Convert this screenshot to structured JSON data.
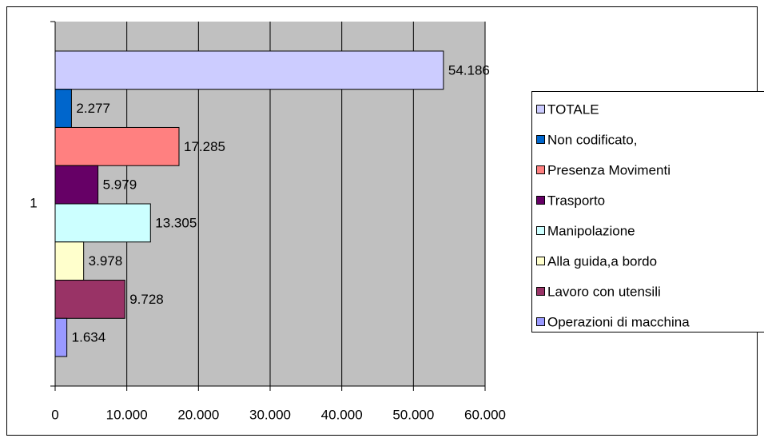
{
  "chart_data": {
    "type": "hbar",
    "categories": [
      "1"
    ],
    "series": [
      {
        "name": "TOTALE",
        "color": "#ccccff",
        "values": [
          54186
        ],
        "value_labels": [
          "54.186"
        ]
      },
      {
        "name": "Non codificato,",
        "color": "#0066cc",
        "values": [
          2277
        ],
        "value_labels": [
          "2.277"
        ]
      },
      {
        "name": "Presenza Movimenti",
        "color": "#ff8080",
        "values": [
          17285
        ],
        "value_labels": [
          "17.285"
        ]
      },
      {
        "name": "Trasporto",
        "color": "#660066",
        "values": [
          5979
        ],
        "value_labels": [
          "5.979"
        ]
      },
      {
        "name": "Manipolazione",
        "color": "#ccffff",
        "values": [
          13305
        ],
        "value_labels": [
          "13.305"
        ]
      },
      {
        "name": "Alla guida,a bordo",
        "color": "#ffffcc",
        "values": [
          3978
        ],
        "value_labels": [
          "3.978"
        ]
      },
      {
        "name": "Lavoro con utensili",
        "color": "#993366",
        "values": [
          9728
        ],
        "value_labels": [
          "9.728"
        ]
      },
      {
        "name": "Operazioni di macchina",
        "color": "#9999ff",
        "values": [
          1634
        ],
        "value_labels": [
          "1.634"
        ]
      }
    ],
    "xlim": [
      0,
      60000
    ],
    "xticks": [
      0,
      {
        "value": 10000,
        "label": "10.000"
      },
      {
        "value": 20000,
        "label": "20.000"
      },
      {
        "value": 30000,
        "label": "30.000"
      },
      {
        "value": 40000,
        "label": "40.000"
      },
      {
        "value": 50000,
        "label": "50.000"
      },
      {
        "value": 60000,
        "label": "60.000"
      }
    ],
    "grid": true,
    "legend": "right"
  }
}
